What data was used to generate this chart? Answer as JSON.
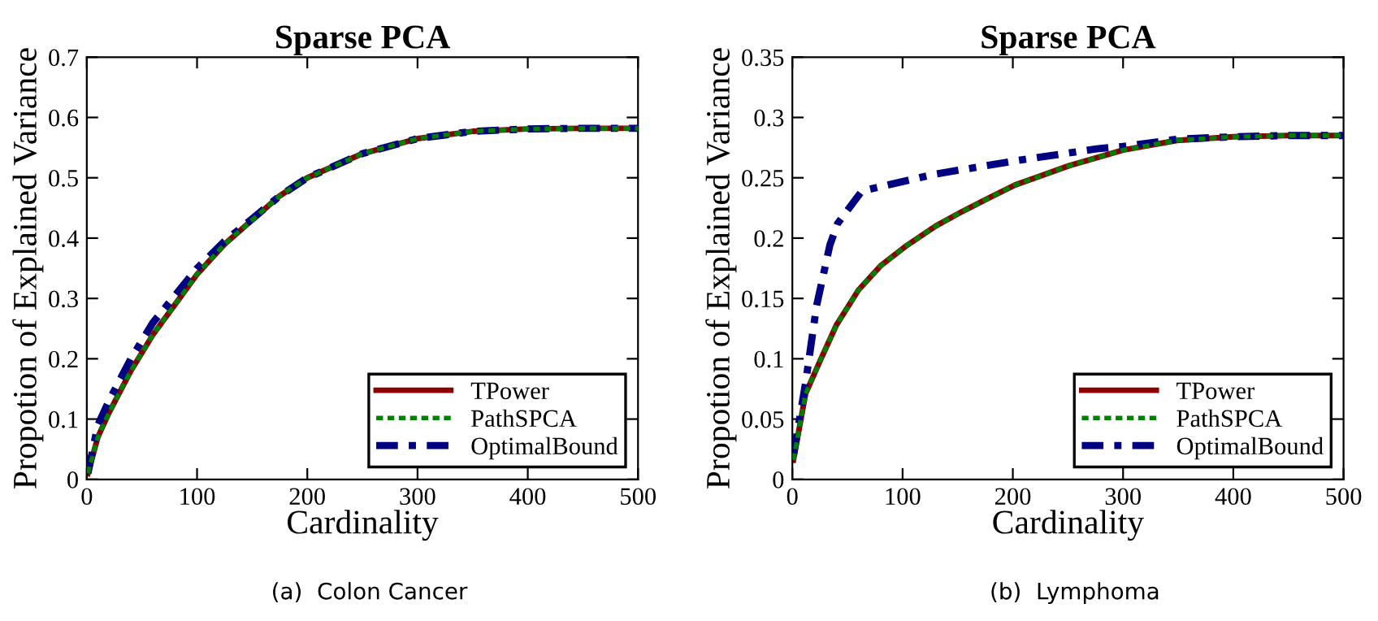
{
  "chart_data": [
    {
      "type": "line",
      "title": "Sparse PCA",
      "xlabel": "Cardinality",
      "ylabel": "Propotion of Explained Variance",
      "xlim": [
        0,
        500
      ],
      "xticks": [
        0,
        100,
        200,
        300,
        400,
        500
      ],
      "ylim": [
        0,
        0.7
      ],
      "yticks": [
        0,
        0.1,
        0.2,
        0.3,
        0.4,
        0.5,
        0.6,
        0.7
      ],
      "legend": "bottom right",
      "grid": false,
      "annotations": [
        "(a)  Colon Cancer"
      ],
      "series": [
        {
          "name": "TPower",
          "color": "#8b0000",
          "line_style": "solid",
          "x": [
            1,
            10,
            20,
            40,
            60,
            80,
            100,
            125,
            150,
            175,
            200,
            250,
            300,
            350,
            400,
            450,
            500
          ],
          "values": [
            0.01,
            0.07,
            0.11,
            0.18,
            0.24,
            0.29,
            0.34,
            0.39,
            0.43,
            0.47,
            0.5,
            0.54,
            0.565,
            0.577,
            0.581,
            0.582,
            0.582
          ]
        },
        {
          "name": "PathSPCA",
          "color": "#008000",
          "line_style": "dashed",
          "x": [
            1,
            10,
            20,
            40,
            60,
            80,
            100,
            125,
            150,
            175,
            200,
            250,
            300,
            350,
            400,
            450,
            500
          ],
          "values": [
            0.01,
            0.07,
            0.11,
            0.18,
            0.24,
            0.29,
            0.34,
            0.39,
            0.43,
            0.47,
            0.5,
            0.54,
            0.565,
            0.577,
            0.581,
            0.582,
            0.582
          ]
        },
        {
          "name": "OptimalBound",
          "color": "#000080",
          "line_style": "dashdot",
          "x": [
            1,
            10,
            20,
            40,
            60,
            80,
            100,
            125,
            150,
            175,
            200,
            250,
            300,
            350,
            400,
            450,
            500
          ],
          "values": [
            0.01,
            0.09,
            0.13,
            0.2,
            0.26,
            0.305,
            0.35,
            0.395,
            0.432,
            0.47,
            0.5,
            0.54,
            0.565,
            0.577,
            0.581,
            0.582,
            0.582
          ]
        }
      ]
    },
    {
      "type": "line",
      "title": "Sparse PCA",
      "xlabel": "Cardinality",
      "ylabel": "Propotion of Explained Variance",
      "xlim": [
        0,
        500
      ],
      "xticks": [
        0,
        100,
        200,
        300,
        400,
        500
      ],
      "ylim": [
        0,
        0.35
      ],
      "yticks": [
        0,
        0.05,
        0.1,
        0.15,
        0.2,
        0.25,
        0.3,
        0.35
      ],
      "legend": "bottom right",
      "grid": false,
      "annotations": [
        "(b)  Lymphoma"
      ],
      "series": [
        {
          "name": "TPower",
          "color": "#8b0000",
          "line_style": "solid",
          "x": [
            1,
            12,
            26,
            40,
            60,
            80,
            104,
            130,
            154,
            180,
            202,
            251,
            300,
            349,
            400,
            450,
            500
          ],
          "values": [
            0.016,
            0.071,
            0.1,
            0.128,
            0.157,
            0.177,
            0.194,
            0.21,
            0.222,
            0.234,
            0.244,
            0.26,
            0.273,
            0.281,
            0.284,
            0.285,
            0.285
          ]
        },
        {
          "name": "PathSPCA",
          "color": "#008000",
          "line_style": "dashed",
          "x": [
            1,
            12,
            26,
            40,
            60,
            80,
            104,
            130,
            154,
            180,
            202,
            251,
            300,
            349,
            400,
            450,
            500
          ],
          "values": [
            0.016,
            0.071,
            0.1,
            0.128,
            0.157,
            0.177,
            0.194,
            0.21,
            0.222,
            0.234,
            0.244,
            0.26,
            0.273,
            0.281,
            0.284,
            0.285,
            0.285
          ]
        },
        {
          "name": "OptimalBound",
          "color": "#000080",
          "line_style": "dashdot",
          "x": [
            1,
            12,
            22,
            34,
            41,
            63,
            129,
            202,
            276,
            300,
            349,
            400,
            450,
            500
          ],
          "values": [
            0.02,
            0.08,
            0.144,
            0.194,
            0.212,
            0.239,
            0.253,
            0.264,
            0.274,
            0.276,
            0.282,
            0.284,
            0.285,
            0.285
          ]
        }
      ]
    }
  ]
}
